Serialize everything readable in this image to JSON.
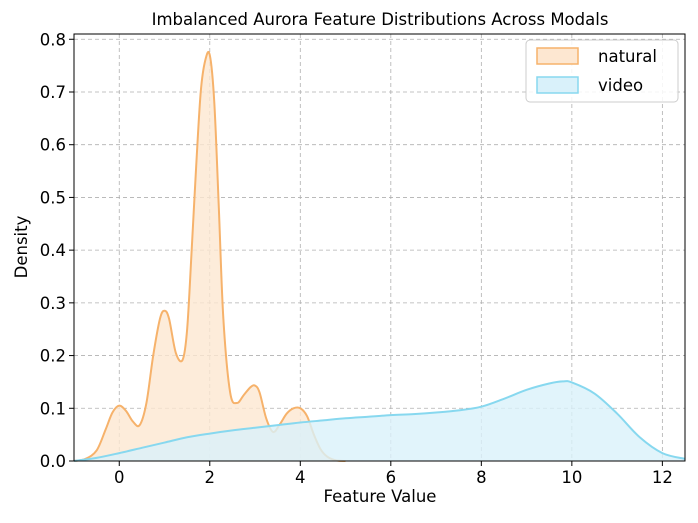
{
  "chart_data": {
    "type": "area",
    "title": "Imbalanced Aurora Feature Distributions Across Modals",
    "xlabel": "Feature Value",
    "ylabel": "Density",
    "xlim": [
      -1.0,
      12.5
    ],
    "ylim": [
      0.0,
      0.81
    ],
    "xticks": [
      0,
      2,
      4,
      6,
      8,
      10,
      12
    ],
    "yticks": [
      0.0,
      0.1,
      0.2,
      0.3,
      0.4,
      0.5,
      0.6,
      0.7,
      0.8
    ],
    "grid": true,
    "legend_position": "top-right",
    "series": [
      {
        "name": "natural",
        "color": "#f6b26b",
        "fill_color": "#fde7d1",
        "x": [
          -1.0,
          -0.75,
          -0.5,
          -0.3,
          -0.15,
          0.0,
          0.15,
          0.3,
          0.45,
          0.6,
          0.75,
          0.9,
          1.0,
          1.1,
          1.25,
          1.4,
          1.5,
          1.6,
          1.7,
          1.8,
          1.9,
          2.0,
          2.1,
          2.2,
          2.3,
          2.45,
          2.6,
          2.75,
          2.9,
          3.0,
          3.1,
          3.25,
          3.4,
          3.55,
          3.7,
          3.85,
          4.0,
          4.15,
          4.3,
          4.45,
          4.6,
          4.8,
          5.0
        ],
        "y": [
          0.0,
          0.004,
          0.02,
          0.06,
          0.092,
          0.105,
          0.095,
          0.075,
          0.068,
          0.11,
          0.2,
          0.27,
          0.285,
          0.27,
          0.205,
          0.192,
          0.25,
          0.4,
          0.56,
          0.7,
          0.76,
          0.77,
          0.68,
          0.48,
          0.27,
          0.13,
          0.11,
          0.125,
          0.14,
          0.143,
          0.13,
          0.08,
          0.055,
          0.07,
          0.09,
          0.1,
          0.1,
          0.085,
          0.05,
          0.022,
          0.008,
          0.001,
          0.0
        ]
      },
      {
        "name": "video",
        "color": "#87d8ef",
        "fill_color": "#d9f1fa",
        "x": [
          -1.0,
          -0.5,
          0.0,
          0.5,
          1.0,
          1.5,
          2.0,
          2.5,
          3.0,
          3.5,
          4.0,
          4.5,
          5.0,
          5.5,
          6.0,
          6.5,
          7.0,
          7.5,
          8.0,
          8.5,
          9.0,
          9.5,
          9.8,
          10.0,
          10.5,
          11.0,
          11.5,
          12.0,
          12.5
        ],
        "y": [
          0.0,
          0.006,
          0.015,
          0.025,
          0.035,
          0.045,
          0.052,
          0.058,
          0.063,
          0.068,
          0.073,
          0.077,
          0.081,
          0.084,
          0.087,
          0.089,
          0.092,
          0.096,
          0.103,
          0.118,
          0.135,
          0.147,
          0.151,
          0.149,
          0.128,
          0.09,
          0.045,
          0.015,
          0.004
        ]
      }
    ]
  }
}
